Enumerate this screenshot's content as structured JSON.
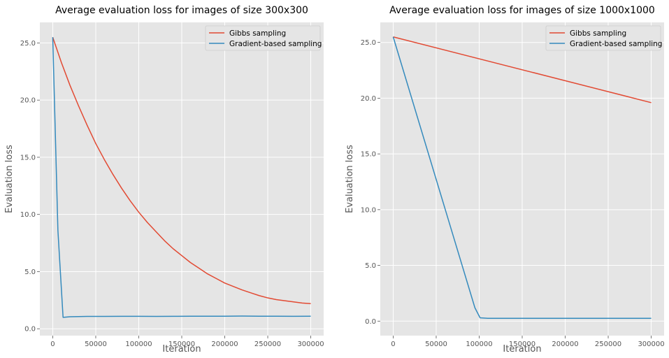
{
  "chart_data": [
    {
      "type": "line",
      "title": "Average evaluation loss for images of size 300x300",
      "xlabel": "Iteration",
      "ylabel": "Evaluation loss",
      "xlim": [
        -15000,
        315000
      ],
      "ylim": [
        -0.6,
        26.8
      ],
      "xticks": [
        0,
        50000,
        100000,
        150000,
        200000,
        250000,
        300000
      ],
      "xtick_labels": [
        "0",
        "50000",
        "100000",
        "150000",
        "200000",
        "250000",
        "300000"
      ],
      "yticks": [
        0,
        5,
        10,
        15,
        20,
        25
      ],
      "ytick_labels": [
        "0.0",
        "5.0",
        "10.0",
        "15.0",
        "20.0",
        "25.0"
      ],
      "grid": true,
      "legend_position": "top-right",
      "series": [
        {
          "name": "Gibbs sampling",
          "color": "#E24A33",
          "points": [
            [
              0,
              25.5
            ],
            [
              10000,
              23.3
            ],
            [
              20000,
              21.3
            ],
            [
              30000,
              19.5
            ],
            [
              40000,
              17.8
            ],
            [
              50000,
              16.2
            ],
            [
              60000,
              14.8
            ],
            [
              70000,
              13.5
            ],
            [
              80000,
              12.3
            ],
            [
              90000,
              11.2
            ],
            [
              100000,
              10.2
            ],
            [
              110000,
              9.3
            ],
            [
              120000,
              8.5
            ],
            [
              130000,
              7.7
            ],
            [
              140000,
              7.0
            ],
            [
              150000,
              6.4
            ],
            [
              160000,
              5.8
            ],
            [
              170000,
              5.3
            ],
            [
              180000,
              4.8
            ],
            [
              190000,
              4.4
            ],
            [
              200000,
              4.0
            ],
            [
              210000,
              3.7
            ],
            [
              220000,
              3.4
            ],
            [
              230000,
              3.15
            ],
            [
              240000,
              2.9
            ],
            [
              250000,
              2.7
            ],
            [
              260000,
              2.55
            ],
            [
              270000,
              2.45
            ],
            [
              280000,
              2.35
            ],
            [
              290000,
              2.25
            ],
            [
              300000,
              2.2
            ]
          ]
        },
        {
          "name": "Gradient-based sampling",
          "color": "#348ABD",
          "points": [
            [
              0,
              25.5
            ],
            [
              6000,
              8.6
            ],
            [
              12000,
              1.0
            ],
            [
              20000,
              1.05
            ],
            [
              40000,
              1.08
            ],
            [
              60000,
              1.08
            ],
            [
              80000,
              1.09
            ],
            [
              100000,
              1.09
            ],
            [
              120000,
              1.08
            ],
            [
              140000,
              1.09
            ],
            [
              160000,
              1.1
            ],
            [
              180000,
              1.1
            ],
            [
              200000,
              1.1
            ],
            [
              220000,
              1.11
            ],
            [
              240000,
              1.1
            ],
            [
              260000,
              1.1
            ],
            [
              280000,
              1.09
            ],
            [
              300000,
              1.1
            ]
          ]
        }
      ]
    },
    {
      "type": "line",
      "title": "Average evaluation loss for images of size 1000x1000",
      "xlabel": "Iteration",
      "ylabel": "Evaluation loss",
      "xlim": [
        -15000,
        315000
      ],
      "ylim": [
        -1.3,
        26.8
      ],
      "xticks": [
        0,
        50000,
        100000,
        150000,
        200000,
        250000,
        300000
      ],
      "xtick_labels": [
        "0",
        "50000",
        "100000",
        "150000",
        "200000",
        "250000",
        "300000"
      ],
      "yticks": [
        0,
        5,
        10,
        15,
        20,
        25
      ],
      "ytick_labels": [
        "0.0",
        "5.0",
        "10.0",
        "15.0",
        "20.0",
        "25.0"
      ],
      "grid": true,
      "legend_position": "top-right",
      "series": [
        {
          "name": "Gibbs sampling",
          "color": "#E24A33",
          "points": [
            [
              0,
              25.5
            ],
            [
              300000,
              19.6
            ]
          ]
        },
        {
          "name": "Gradient-based sampling",
          "color": "#348ABD",
          "points": [
            [
              0,
              25.5
            ],
            [
              95000,
              1.2
            ],
            [
              101000,
              0.3
            ],
            [
              110000,
              0.25
            ],
            [
              150000,
              0.25
            ],
            [
              200000,
              0.25
            ],
            [
              250000,
              0.25
            ],
            [
              300000,
              0.25
            ]
          ]
        }
      ]
    }
  ]
}
